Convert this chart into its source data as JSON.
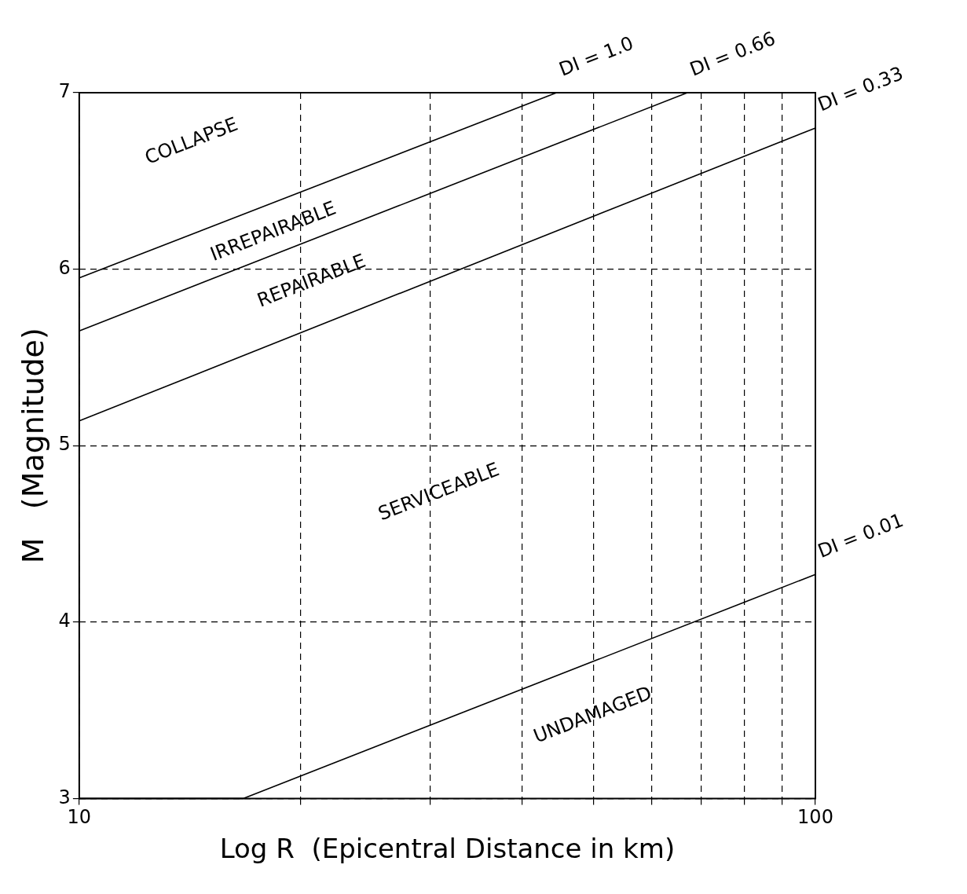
{
  "chart_data": {
    "type": "line",
    "xlabel": "Log R  (Epicentral Distance in km)",
    "ylabel": "M   (Magnitude)",
    "log": "x",
    "xlim": [
      10,
      100
    ],
    "ylim": [
      3,
      7
    ],
    "xticks": [
      10,
      {
        "value": 20,
        "label": null
      },
      {
        "value": 30,
        "label": null
      },
      {
        "value": 40,
        "label": null
      },
      {
        "value": 50,
        "label": null
      },
      {
        "value": 60,
        "label": null
      },
      {
        "value": 70,
        "label": null
      },
      {
        "value": 80,
        "label": null
      },
      {
        "value": 90,
        "label": null
      },
      100
    ],
    "yticks": [
      3,
      4,
      5,
      6,
      7
    ],
    "grid": true,
    "line_style": "solid",
    "marker": "none",
    "legend": false,
    "series": [
      {
        "name": "DI = 1.0",
        "color": "#000000",
        "x": [
          10,
          44.5
        ],
        "values": [
          5.95,
          7
        ]
      },
      {
        "name": "DI = 0.66",
        "color": "#000000",
        "x": [
          10,
          67
        ],
        "values": [
          5.65,
          7
        ]
      },
      {
        "name": "DI = 0.33",
        "color": "#000000",
        "x": [
          10,
          100
        ],
        "values": [
          5.14,
          6.8
        ]
      },
      {
        "name": "DI = 0.01",
        "color": "#000000",
        "x": [
          10,
          16.7,
          100
        ],
        "values": [
          3,
          3,
          4.27
        ]
      }
    ],
    "annotations": [
      "COLLAPSE",
      "IRREPAIRABLE",
      "REPAIRABLE",
      "SERVICEABLE",
      "UNDAMAGED"
    ]
  }
}
